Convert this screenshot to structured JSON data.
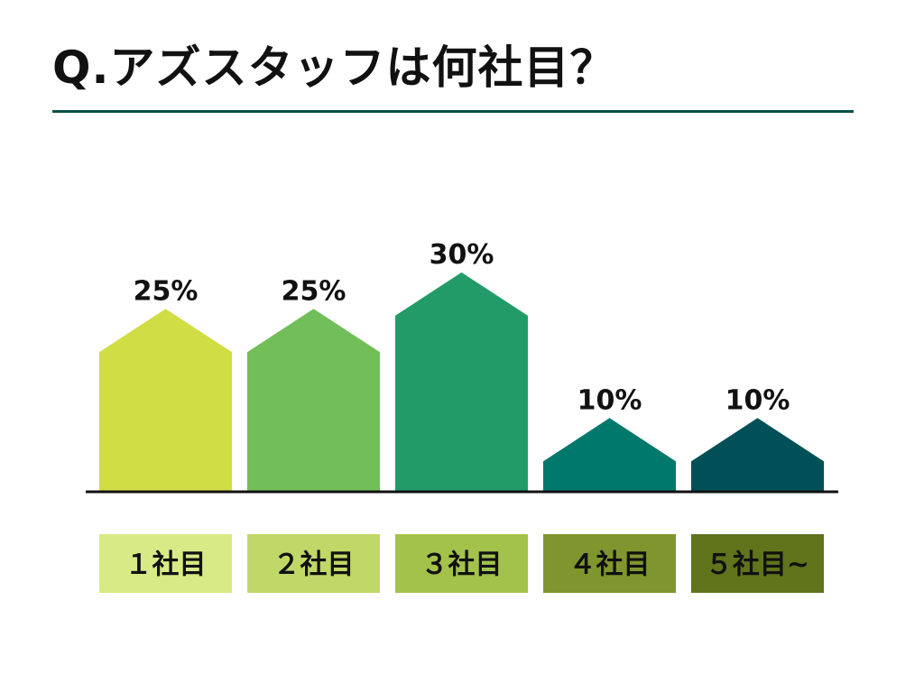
{
  "title": "Q.アズスタッフは何社目？",
  "colors": {
    "title_rule": "#0a4f47",
    "axis": "#111111",
    "bars": [
      "#d1dd44",
      "#72bf5a",
      "#229b68",
      "#00786b",
      "#025057"
    ],
    "category_boxes": [
      "#d8ea86",
      "#c0d867",
      "#a3c24c",
      "#7f962f",
      "#5f741b"
    ]
  },
  "chart_data": {
    "type": "bar",
    "categories": [
      "１社目",
      "２社目",
      "３社目",
      "４社目",
      "５社目~"
    ],
    "values": [
      25,
      25,
      30,
      10,
      10
    ],
    "value_labels": [
      "25%",
      "25%",
      "30%",
      "10%",
      "10%"
    ],
    "unit": "%",
    "title": "Q.アズスタッフは何社目？",
    "xlabel": "",
    "ylabel": "",
    "ylim": [
      0,
      30
    ],
    "grid": false,
    "legend": "none"
  }
}
